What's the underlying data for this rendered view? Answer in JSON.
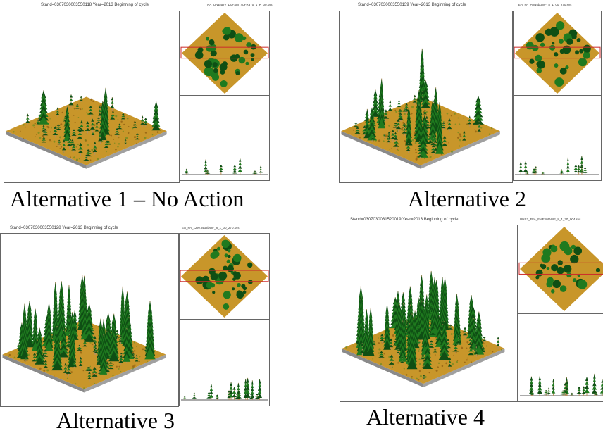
{
  "colors": {
    "ground": "#c8962a",
    "ground_dark": "#8a5a10",
    "ground_edge": "#8a8a8a",
    "canopy": "#1f7a1f",
    "canopy_dark": "#0f4f14",
    "trunk": "#b89060",
    "marker": "#cc2a2a"
  },
  "panels": [
    {
      "stand_label": "Stand=0307030003550118 Year=2013 Beginning of cycle",
      "file_label": "NA_ONE4DV_D0FSmT4dFR3_0_1_R_00.svs",
      "caption": "Alternative 1 – No Action",
      "trees": 60,
      "tall": 5,
      "crowns": 38
    },
    {
      "stand_label": "Stand=0307030003550139 Year=2013 Beginning of cycle",
      "file_label": "EA_FA_PAw4buWF_8_1_00_270.svs",
      "caption": "Alternative 2",
      "trees": 70,
      "tall": 16,
      "crowns": 34
    },
    {
      "stand_label": "Stand=0307030003550128 Year=2013 Beginning of cycle",
      "file_label": "EA_FA_12e734u8bWF_8_1_00_270.svs",
      "caption": "Alternative 3",
      "trees": 85,
      "tall": 30,
      "crowns": 44
    },
    {
      "stand_label": "Stand=0307030031520019 Year=2013 Beginning of cycle",
      "file_label": "UHS2_FFA_FMFYutAWF_8_1_20_004.svs",
      "caption": "Alternative 4",
      "trees": 90,
      "tall": 40,
      "crowns": 30
    }
  ]
}
